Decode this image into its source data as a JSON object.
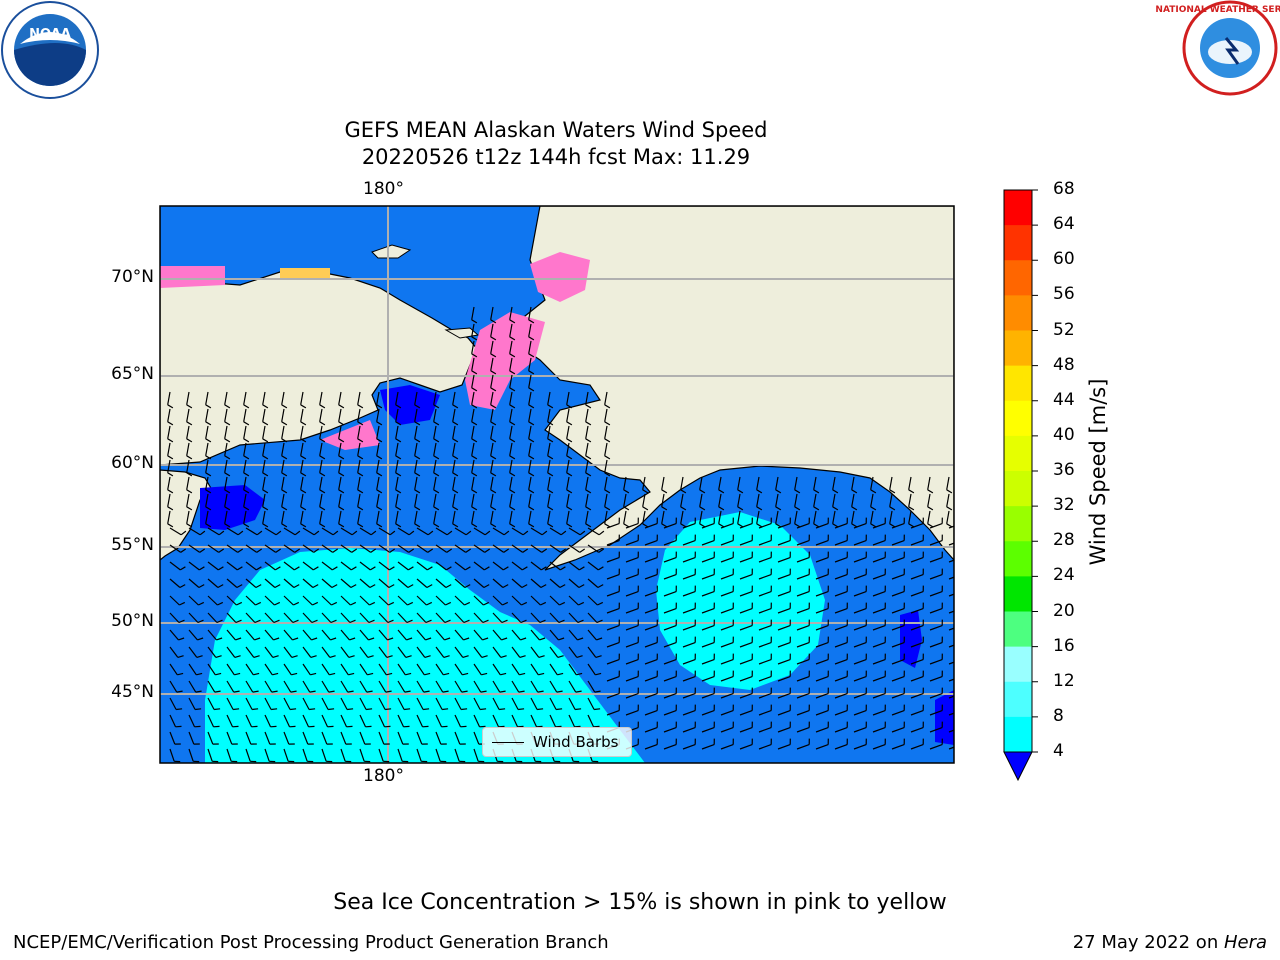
{
  "title_line1": "GEFS MEAN Alaskan Waters Wind Speed",
  "title_line2": "20220526 t12z 144h fcst   Max: 11.29",
  "lon_label_top": "180°",
  "lon_label_bottom": "180°",
  "lat_labels": [
    "70°N",
    "65°N",
    "60°N",
    "55°N",
    "50°N",
    "45°N"
  ],
  "colorbar": {
    "label": "Wind Speed [m/s]",
    "ticks": [
      "68",
      "64",
      "60",
      "56",
      "52",
      "48",
      "44",
      "40",
      "36",
      "32",
      "28",
      "24",
      "20",
      "16",
      "12",
      "8",
      "4"
    ],
    "colors": [
      "#ff0000",
      "#ff3300",
      "#ff6600",
      "#ff8c00",
      "#ffb300",
      "#ffe600",
      "#ffff00",
      "#e6ff00",
      "#ccff00",
      "#99ff00",
      "#5cff00",
      "#00e600",
      "#4dff80",
      "#99ffff",
      "#4dffff",
      "#00ffff",
      "#0077ff",
      "#0000ff"
    ]
  },
  "legend_label": "Wind Barbs",
  "note": "Sea Ice Concentration > 15% is shown in pink to yellow",
  "footer_left": "NCEP/EMC/Verification Post Processing Product Generation Branch",
  "footer_right_prefix": "27 May 2022 on ",
  "footer_right_host": "Hera",
  "logos": {
    "left": "NOAA",
    "right": "NATIONAL WEATHER SERVICE"
  },
  "colors": {
    "land": "#eeeedc",
    "ocean_main": "#0f76f0",
    "ocean_calm": "#0000ff",
    "ocean_strong": "#00ffff",
    "sea_ice": "#ff77cc"
  }
}
